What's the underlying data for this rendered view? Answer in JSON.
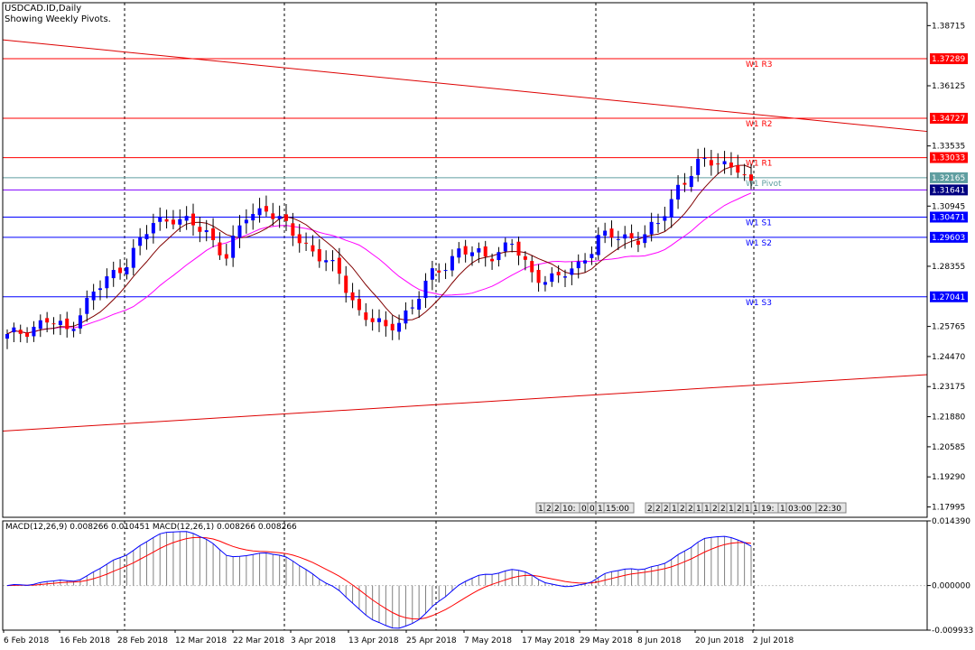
{
  "header": {
    "symbol_line": "USDCAD.ID,Daily",
    "subtitle": "Showing Weekly Pivots."
  },
  "macd_label": "MACD(12,26,9) 0.008266 0.010451 MACD(12,26,1) 0.008266 0.008266",
  "tooltip_strip_left": [
    "1",
    "2",
    "2",
    "10:",
    "0",
    "0",
    "1",
    "15:00"
  ],
  "tooltip_strip_right": [
    "2",
    "2",
    "2",
    "1",
    "2",
    "2",
    "1",
    "1",
    "2",
    "2",
    "1",
    "2",
    "1",
    "1",
    "19:",
    "1",
    "03:00",
    "22:30"
  ],
  "colors": {
    "bull": "#0000ff",
    "bear": "#ff0000",
    "resistance": "#ff0000",
    "support": "#0000ff",
    "pivot": "#808000",
    "ma_fast": "#800000",
    "ma_slow": "#ff00ff",
    "macd_line": "#0000ff",
    "signal_line": "#ff0000",
    "histogram": "#808080",
    "trendline": "#dd0000",
    "current_price": "#8000ff"
  },
  "chart_data": {
    "type": "candlestick",
    "title": "USDCAD.ID,Daily",
    "y_ticks": [
      "1.38715",
      "1.36125",
      "1.33535",
      "1.30945",
      "1.28355",
      "1.25765",
      "1.24470",
      "1.23175",
      "1.21880",
      "1.20585",
      "1.19290",
      "1.17995"
    ],
    "ylim": [
      1.1755,
      1.397
    ],
    "x_labels": [
      "6 Feb 2018",
      "16 Feb 2018",
      "28 Feb 2018",
      "12 Mar 2018",
      "22 Mar 2018",
      "3 Apr 2018",
      "13 Apr 2018",
      "25 Apr 2018",
      "7 May 2018",
      "17 May 2018",
      "29 May 2018",
      "8 Jun 2018",
      "20 Jun 2018",
      "2 Jul 2018"
    ],
    "pivots": [
      {
        "name": "W1 R3",
        "value": 1.37289,
        "kind": "resistance"
      },
      {
        "name": "W1 R2",
        "value": 1.34727,
        "kind": "resistance"
      },
      {
        "name": "W1 R1",
        "value": 1.33033,
        "kind": "resistance"
      },
      {
        "name": "W1 Pivot",
        "value": 1.32165,
        "kind": "pivot"
      },
      {
        "name": "W1 S1",
        "value": 1.30471,
        "kind": "support"
      },
      {
        "name": "W1 S2",
        "value": 1.29603,
        "kind": "support"
      },
      {
        "name": "W1 S3",
        "value": 1.27041,
        "kind": "support"
      }
    ],
    "current_price": "1.31641",
    "current_price_value": 1.31641,
    "macd": {
      "label": "MACD(12,26,9) 0.008266 0.010451 MACD(12,26,1) 0.008266 0.008266",
      "y_ticks": [
        "0.014390",
        "0.000000",
        "-0.009933"
      ],
      "ylim": [
        -0.009933,
        0.01439
      ]
    }
  }
}
